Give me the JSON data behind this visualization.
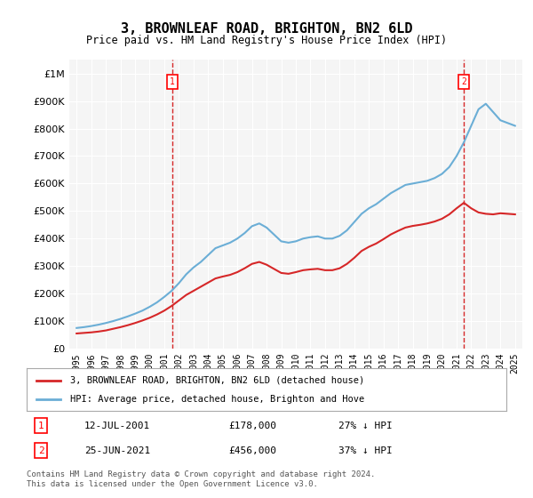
{
  "title": "3, BROWNLEAF ROAD, BRIGHTON, BN2 6LD",
  "subtitle": "Price paid vs. HM Land Registry's House Price Index (HPI)",
  "hpi_color": "#6baed6",
  "price_color": "#d62728",
  "dashed_line_color": "#d62728",
  "background_color": "#ffffff",
  "plot_bg_color": "#f5f5f5",
  "grid_color": "#ffffff",
  "ylim": [
    0,
    1050000
  ],
  "yticks": [
    0,
    100000,
    200000,
    300000,
    400000,
    500000,
    600000,
    700000,
    800000,
    900000,
    1000000
  ],
  "ytick_labels": [
    "£0",
    "£100K",
    "£200K",
    "£300K",
    "£400K",
    "£500K",
    "£600K",
    "£700K",
    "£800K",
    "£900K",
    "£1M"
  ],
  "sale1_date": "12-JUL-2001",
  "sale1_price": 178000,
  "sale1_hpi_diff": "27% ↓ HPI",
  "sale1_x": 2001.53,
  "sale2_date": "25-JUN-2021",
  "sale2_price": 456000,
  "sale2_hpi_diff": "37% ↓ HPI",
  "sale2_x": 2021.48,
  "legend_label_price": "3, BROWNLEAF ROAD, BRIGHTON, BN2 6LD (detached house)",
  "legend_label_hpi": "HPI: Average price, detached house, Brighton and Hove",
  "footnote1": "Contains HM Land Registry data © Crown copyright and database right 2024.",
  "footnote2": "This data is licensed under the Open Government Licence v3.0.",
  "hpi_data_x": [
    1995,
    1995.5,
    1996,
    1996.5,
    1997,
    1997.5,
    1998,
    1998.5,
    1999,
    1999.5,
    2000,
    2000.5,
    2001,
    2001.5,
    2002,
    2002.5,
    2003,
    2003.5,
    2004,
    2004.5,
    2005,
    2005.5,
    2006,
    2006.5,
    2007,
    2007.5,
    2008,
    2008.5,
    2009,
    2009.5,
    2010,
    2010.5,
    2011,
    2011.5,
    2012,
    2012.5,
    2013,
    2013.5,
    2014,
    2014.5,
    2015,
    2015.5,
    2016,
    2016.5,
    2017,
    2017.5,
    2018,
    2018.5,
    2019,
    2019.5,
    2020,
    2020.5,
    2021,
    2021.5,
    2022,
    2022.5,
    2023,
    2023.5,
    2024,
    2024.5,
    2025
  ],
  "hpi_data_y": [
    75000,
    78000,
    82000,
    87000,
    93000,
    100000,
    108000,
    117000,
    127000,
    138000,
    152000,
    168000,
    188000,
    210000,
    238000,
    270000,
    295000,
    315000,
    340000,
    365000,
    375000,
    385000,
    400000,
    420000,
    445000,
    455000,
    440000,
    415000,
    390000,
    385000,
    390000,
    400000,
    405000,
    408000,
    400000,
    400000,
    410000,
    430000,
    460000,
    490000,
    510000,
    525000,
    545000,
    565000,
    580000,
    595000,
    600000,
    605000,
    610000,
    620000,
    635000,
    660000,
    700000,
    750000,
    810000,
    870000,
    890000,
    860000,
    830000,
    820000,
    810000
  ],
  "price_data_x": [
    1995,
    1995.5,
    1996,
    1996.5,
    1997,
    1997.5,
    1998,
    1998.5,
    1999,
    1999.5,
    2000,
    2000.5,
    2001,
    2001.5,
    2002,
    2002.5,
    2003,
    2003.5,
    2004,
    2004.5,
    2005,
    2005.5,
    2006,
    2006.5,
    2007,
    2007.5,
    2008,
    2008.5,
    2009,
    2009.5,
    2010,
    2010.5,
    2011,
    2011.5,
    2012,
    2012.5,
    2013,
    2013.5,
    2014,
    2014.5,
    2015,
    2015.5,
    2016,
    2016.5,
    2017,
    2017.5,
    2018,
    2018.5,
    2019,
    2019.5,
    2020,
    2020.5,
    2021,
    2021.5,
    2022,
    2022.5,
    2023,
    2023.5,
    2024,
    2024.5,
    2025
  ],
  "price_data_y": [
    55000,
    57000,
    59000,
    62000,
    66000,
    72000,
    78000,
    85000,
    93000,
    102000,
    112000,
    124000,
    138000,
    155000,
    175000,
    195000,
    210000,
    225000,
    240000,
    255000,
    262000,
    268000,
    278000,
    292000,
    308000,
    315000,
    305000,
    290000,
    275000,
    272000,
    278000,
    285000,
    288000,
    290000,
    285000,
    285000,
    292000,
    308000,
    330000,
    355000,
    370000,
    382000,
    398000,
    415000,
    428000,
    440000,
    446000,
    450000,
    455000,
    462000,
    472000,
    488000,
    510000,
    530000,
    510000,
    495000,
    490000,
    488000,
    492000,
    490000,
    488000
  ]
}
